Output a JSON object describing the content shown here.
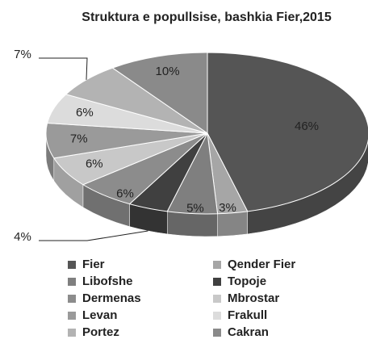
{
  "chart_data": {
    "type": "pie",
    "title": "Struktura e popullsise,  bashkia Fier,2015",
    "categories": [
      "Fier",
      "Qender Fier",
      "Libofshe",
      "Topoje",
      "Dermenas",
      "Mbrostar",
      "Levan",
      "Frakull",
      "Portez",
      "Cakran"
    ],
    "values": [
      46,
      3,
      5,
      4,
      6,
      6,
      7,
      6,
      7,
      10
    ],
    "value_labels": [
      "46%",
      "3%",
      "5%",
      "4%",
      "6%",
      "6%",
      "7%",
      "6%",
      "7%",
      "10%"
    ],
    "colors": [
      "#555555",
      "#a6a6a6",
      "#7f7f7f",
      "#404040",
      "#8c8c8c",
      "#c8c8c8",
      "#9a9a9a",
      "#dcdcdc",
      "#b3b3b3",
      "#8a8a8a"
    ],
    "legend": "bottom"
  }
}
